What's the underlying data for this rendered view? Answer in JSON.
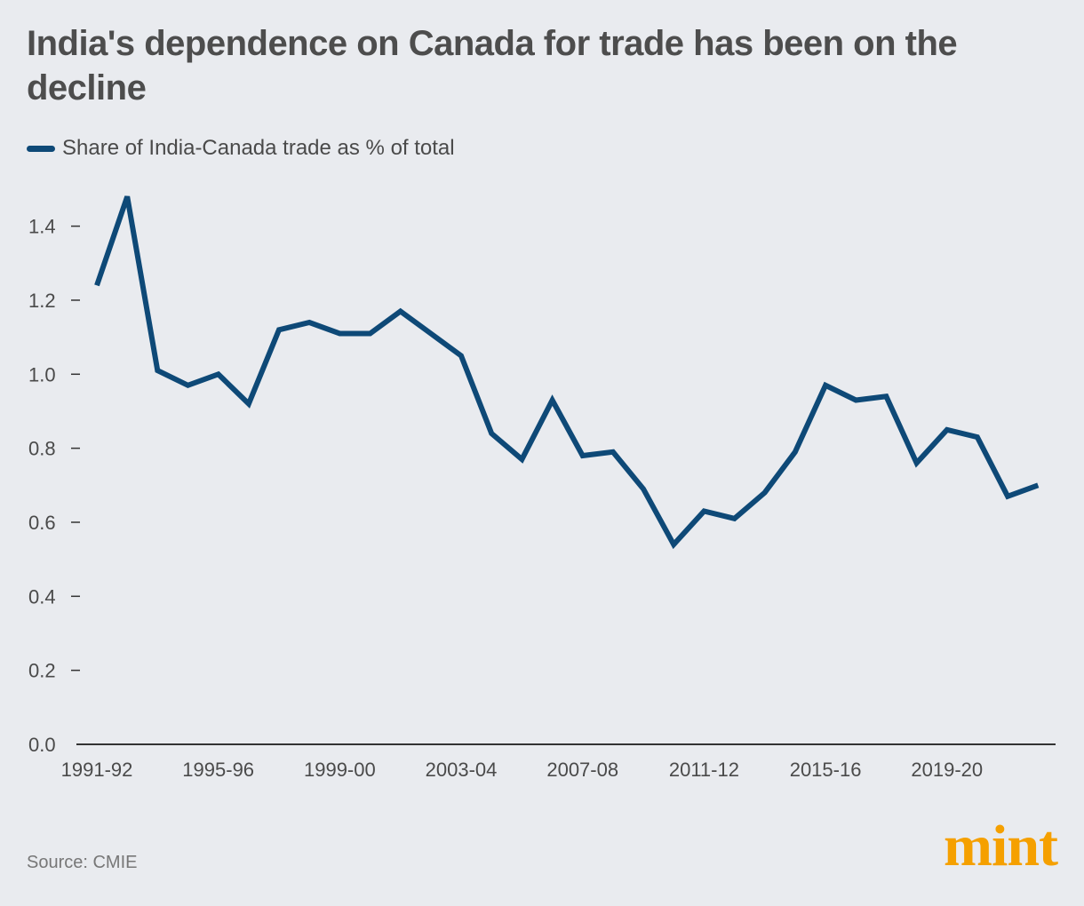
{
  "header": {
    "title": "India's dependence on Canada for trade has been on the decline"
  },
  "colors": {
    "series": "#0e4977",
    "brand": "#f5a000",
    "axis": "#333333"
  },
  "footer": {
    "source": "Source: CMIE",
    "brand": "mint"
  },
  "chart_data": {
    "type": "line",
    "title": "India's dependence on Canada for trade has been on the decline",
    "xlabel": "",
    "ylabel": "",
    "ylim": [
      0,
      1.4
    ],
    "yticks": [
      "0.0",
      "0.2",
      "0.4",
      "0.6",
      "0.8",
      "1.0",
      "1.2",
      "1.4"
    ],
    "xtick_labels": [
      "1991-92",
      "1995-96",
      "1999-00",
      "2003-04",
      "2007-08",
      "2011-12",
      "2015-16",
      "2019-20"
    ],
    "xtick_every": 4,
    "grid": false,
    "legend": "top-left",
    "categories": [
      "1991-92",
      "1992-93",
      "1993-94",
      "1994-95",
      "1995-96",
      "1996-97",
      "1997-98",
      "1998-99",
      "1999-00",
      "2000-01",
      "2001-02",
      "2002-03",
      "2003-04",
      "2004-05",
      "2005-06",
      "2006-07",
      "2007-08",
      "2008-09",
      "2009-10",
      "2010-11",
      "2011-12",
      "2012-13",
      "2013-14",
      "2014-15",
      "2015-16",
      "2016-17",
      "2017-18",
      "2018-19",
      "2019-20",
      "2020-21",
      "2021-22",
      "2022-23"
    ],
    "series": [
      {
        "name": "Share of India-Canada trade as % of total",
        "values": [
          1.24,
          1.48,
          1.01,
          0.97,
          1.0,
          0.92,
          1.12,
          1.14,
          1.11,
          1.11,
          1.17,
          1.11,
          1.05,
          0.84,
          0.77,
          0.93,
          0.78,
          0.79,
          0.69,
          0.54,
          0.63,
          0.61,
          0.68,
          0.79,
          0.97,
          0.93,
          0.94,
          0.76,
          0.85,
          0.83,
          0.67,
          0.7
        ]
      }
    ]
  }
}
